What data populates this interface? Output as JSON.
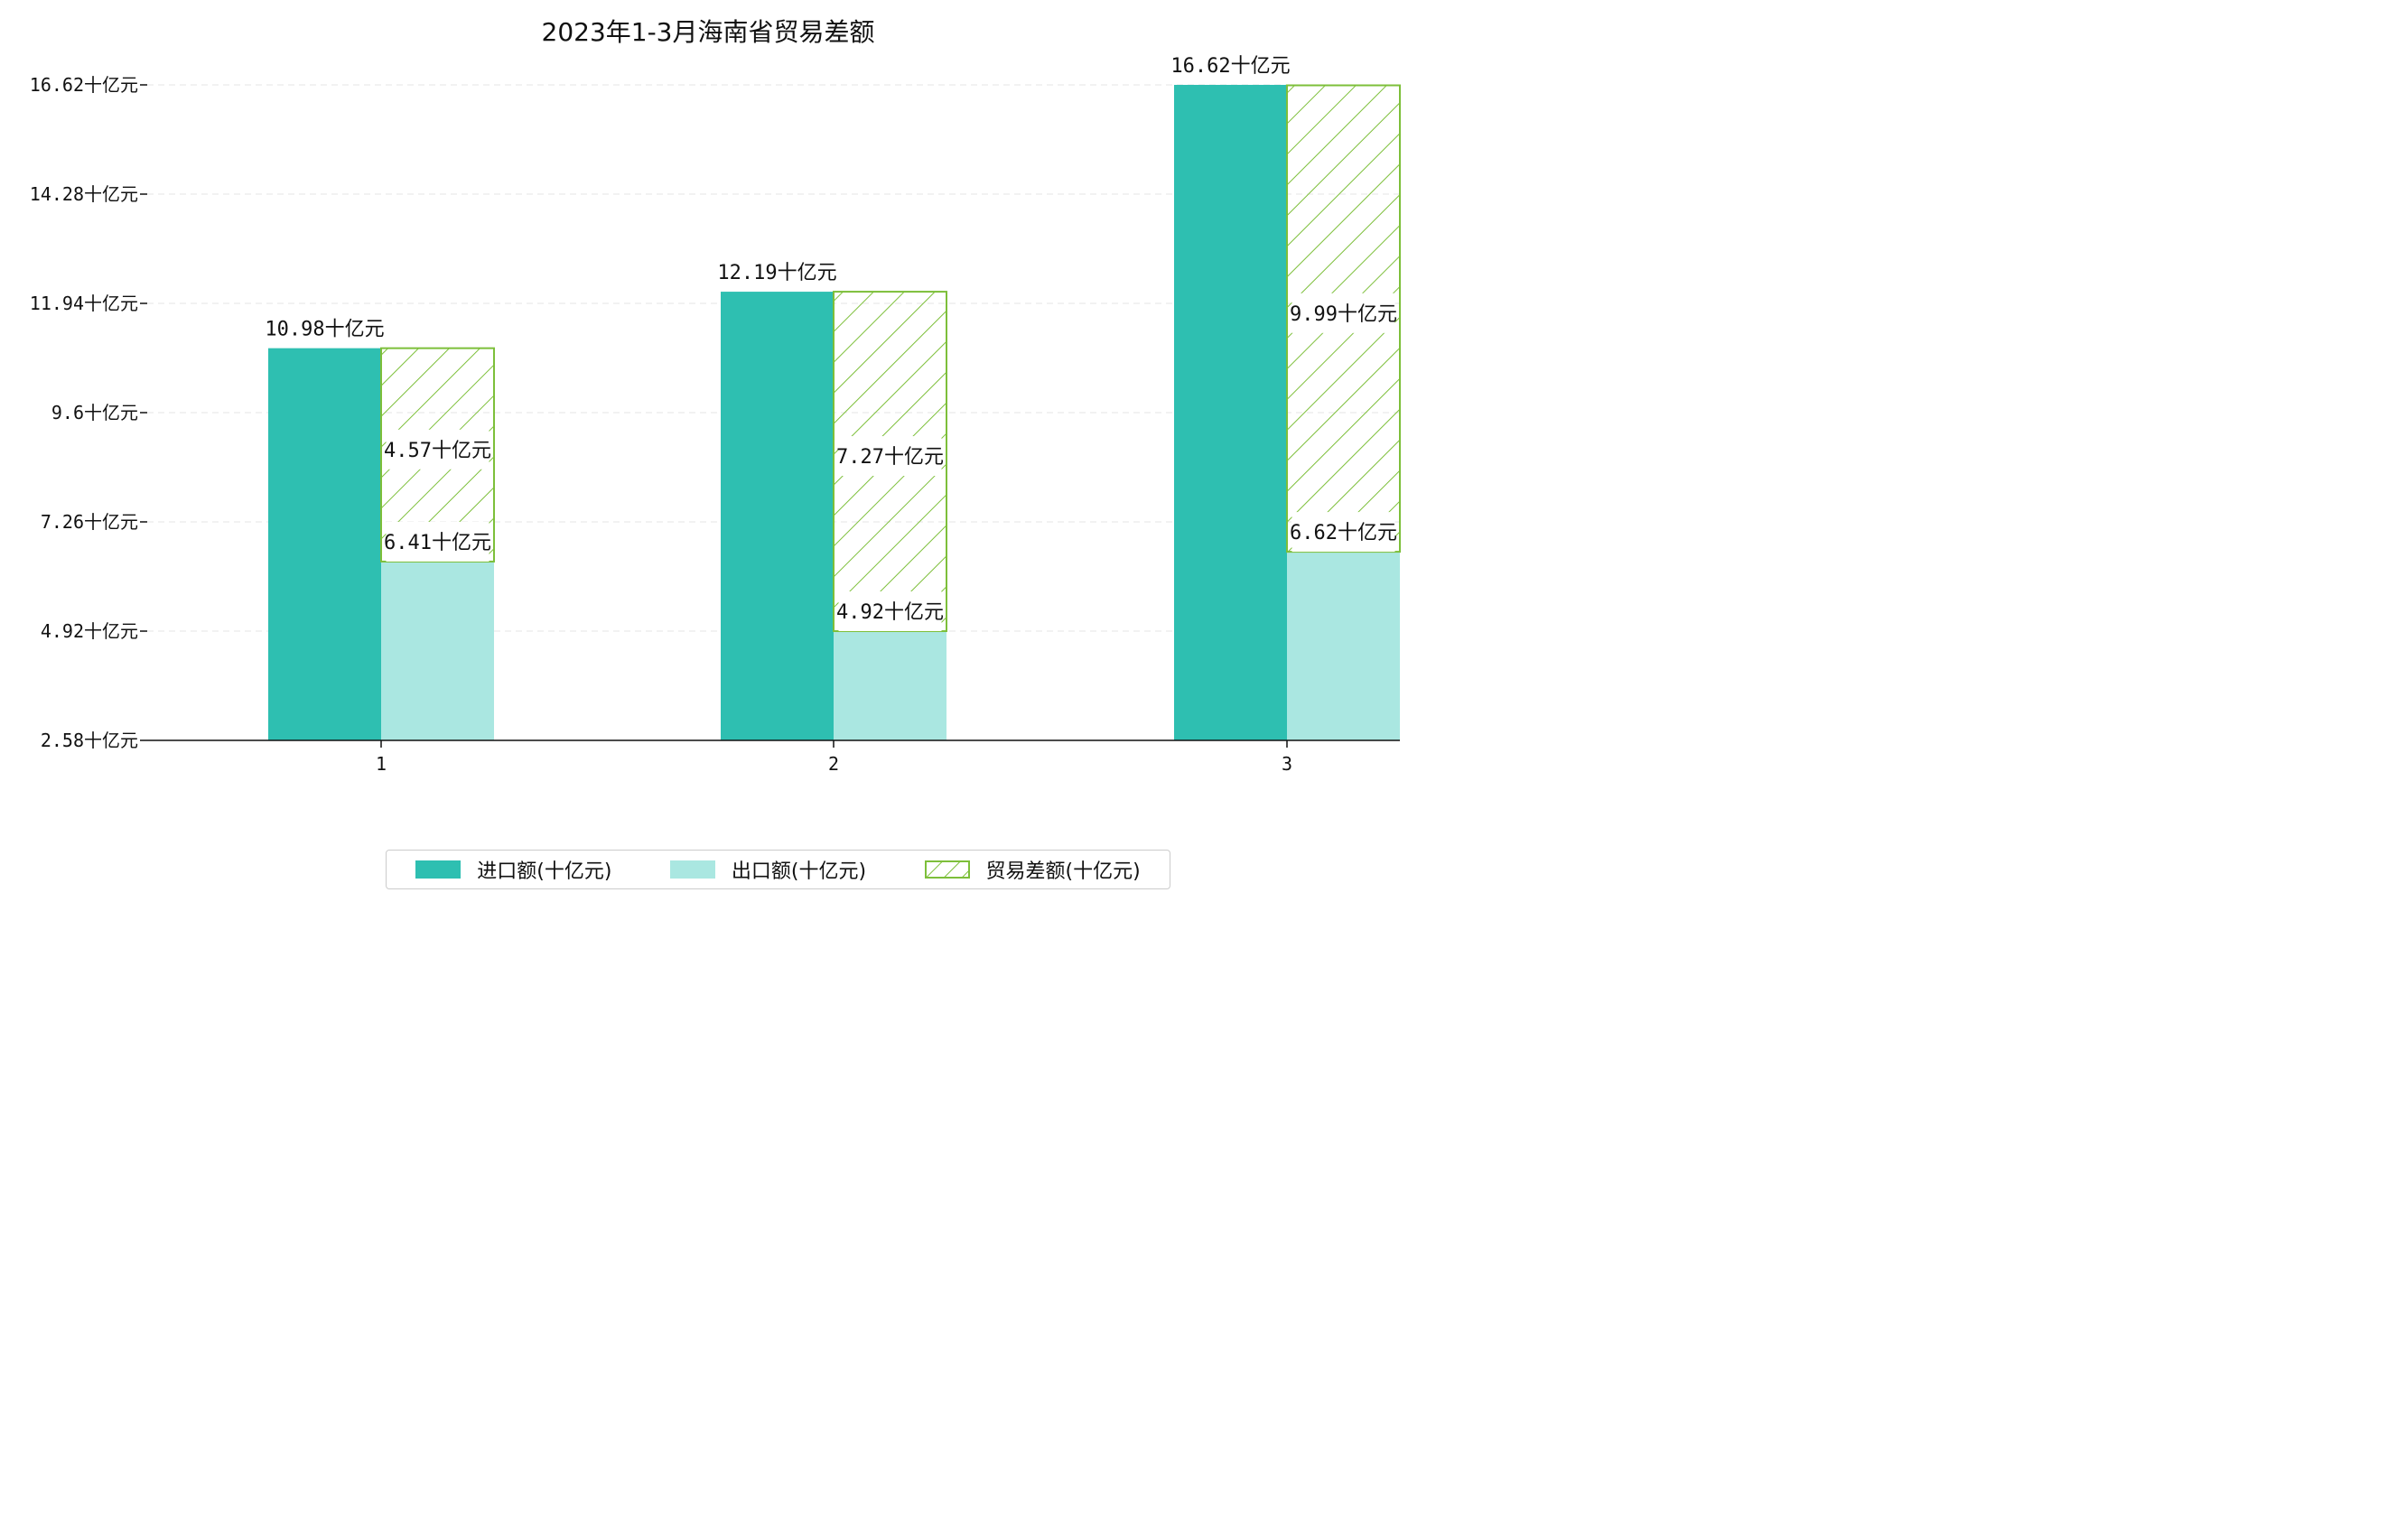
{
  "colors": {
    "import": "#2ebfb1",
    "export": "#aae7e1",
    "balance_stroke": "#7dbf3a",
    "grid": "#e6e6e6",
    "axis": "#111111"
  },
  "chart_data": {
    "type": "bar",
    "title": "2023年1-3月海南省贸易差额",
    "categories": [
      "1",
      "2",
      "3"
    ],
    "ylim": [
      2.58,
      16.62
    ],
    "y_ticks": [
      2.58,
      4.92,
      7.26,
      9.6,
      11.94,
      14.28,
      16.62
    ],
    "y_tick_labels": [
      "2.58十亿元",
      "4.92十亿元",
      "7.26十亿元",
      "9.6十亿元",
      "11.94十亿元",
      "14.28十亿元",
      "16.62十亿元"
    ],
    "unit_suffix": "十亿元",
    "grid": true,
    "legend_position": "bottom-center",
    "series": [
      {
        "name": "进口额(十亿元)",
        "key": "import",
        "values": [
          10.98,
          12.19,
          16.62
        ]
      },
      {
        "name": "出口额(十亿元)",
        "key": "export",
        "values": [
          6.41,
          4.92,
          6.62
        ]
      },
      {
        "name": "贸易差额(十亿元)",
        "key": "balance",
        "values": [
          4.57,
          7.27,
          9.99
        ]
      }
    ],
    "labels": {
      "import": [
        "10.98十亿元",
        "12.19十亿元",
        "16.62十亿元"
      ],
      "export": [
        "6.41十亿元",
        "4.92十亿元",
        "6.62十亿元"
      ],
      "balance": [
        "4.57十亿元",
        "7.27十亿元",
        "9.99十亿元"
      ]
    }
  }
}
